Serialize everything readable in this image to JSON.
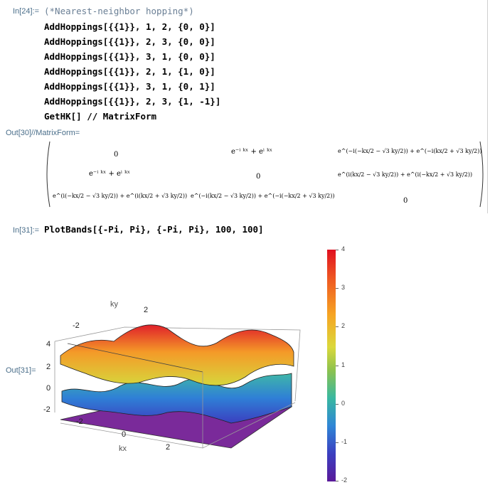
{
  "cells": {
    "in24": {
      "label": "In[24]:=",
      "comment": "(*Nearest-neighbor hopping*)",
      "lines": [
        "AddHoppings[{{1}}, 1, 2, {0, 0}]",
        "AddHoppings[{{1}}, 2, 3, {0, 0}]",
        "AddHoppings[{{1}}, 3, 1, {0, 0}]",
        "AddHoppings[{{1}}, 2, 1, {1, 0}]",
        "AddHoppings[{{1}}, 3, 1, {0, 1}]",
        "AddHoppings[{{1}}, 2, 3, {1, -1}]",
        "GetHK[] // MatrixForm"
      ]
    },
    "out30": {
      "label": "Out[30]//MatrixForm=",
      "m": {
        "r1c1": "0",
        "r1c2": "e⁻ⁱ ᵏˣ + eⁱ ᵏˣ",
        "r1c3": "e^(−i(−kx/2 − √3 ky/2)) + e^(−i(kx/2 + √3 ky/2))",
        "r2c1": "e⁻ⁱ ᵏˣ + eⁱ ᵏˣ",
        "r2c2": "0",
        "r2c3": "e^(i(kx/2 − √3 ky/2)) + e^(i(−kx/2 + √3 ky/2))",
        "r3c1": "e^(i(−kx/2 − √3 ky/2)) + e^(i(kx/2 + √3 ky/2))",
        "r3c2": "e^(−i(kx/2 − √3 ky/2)) + e^(−i(−kx/2 + √3 ky/2))",
        "r3c3": "0"
      }
    },
    "in31": {
      "label": "In[31]:=",
      "code": "PlotBands[{-Pi, Pi}, {-Pi, Pi}, 100, 100]"
    },
    "out31": {
      "label": "Out[31]="
    }
  },
  "plot": {
    "axis_ky": "ky",
    "axis_kx": "kx",
    "ky_ticks": [
      "-2",
      "2"
    ],
    "kx_ticks": [
      "-2",
      "0",
      "2"
    ],
    "z_ticks": [
      "4",
      "2",
      "0",
      "-2"
    ],
    "colorbar_ticks": [
      "4",
      "3",
      "2",
      "1",
      "0",
      "-1",
      "-2"
    ],
    "colors": {
      "top": "#e01020",
      "mid": "#8dc24e",
      "bottom": "#5a1a9a"
    }
  }
}
